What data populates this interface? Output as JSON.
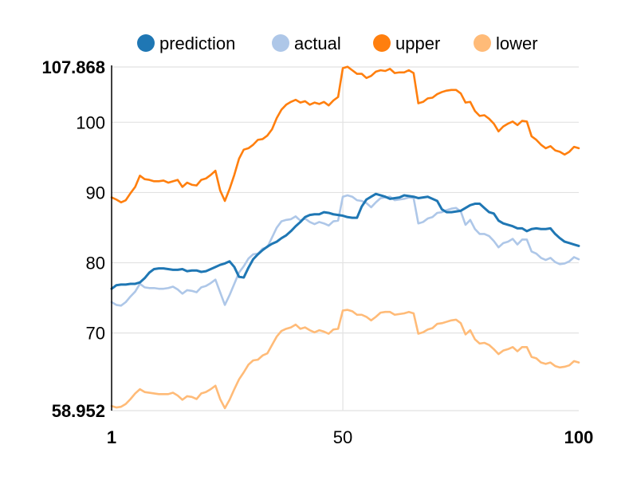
{
  "chart_data": {
    "type": "line",
    "x_range": [
      1,
      100
    ],
    "y_range": [
      58.952,
      107.868
    ],
    "x_ticks": [
      {
        "value": 1,
        "label": "1",
        "bold": true
      },
      {
        "value": 50,
        "label": "50",
        "bold": false
      },
      {
        "value": 100,
        "label": "100",
        "bold": true
      }
    ],
    "y_ticks": [
      {
        "value": 107.868,
        "label": "107.868",
        "bold": true
      },
      {
        "value": 100,
        "label": "100",
        "bold": false
      },
      {
        "value": 90,
        "label": "90",
        "bold": false
      },
      {
        "value": 80,
        "label": "80",
        "bold": false
      },
      {
        "value": 70,
        "label": "70",
        "bold": false
      },
      {
        "value": 58.952,
        "label": "58.952",
        "bold": true
      }
    ],
    "grid": true,
    "legend_position": "top",
    "series": [
      {
        "name": "prediction",
        "color": "#1f77b4",
        "values": [
          76.3,
          76.8,
          76.9,
          76.9,
          77.0,
          77.0,
          77.2,
          77.8,
          78.6,
          79.1,
          79.2,
          79.2,
          79.1,
          79.0,
          79.0,
          79.1,
          78.8,
          78.9,
          78.9,
          78.7,
          78.8,
          79.1,
          79.4,
          79.7,
          79.9,
          80.2,
          79.4,
          78.0,
          77.9,
          79.3,
          80.5,
          81.2,
          81.8,
          82.3,
          82.7,
          83.0,
          83.5,
          83.9,
          84.5,
          85.2,
          85.8,
          86.5,
          86.8,
          86.9,
          86.9,
          87.2,
          87.1,
          86.9,
          86.8,
          86.7,
          86.5,
          86.4,
          86.4,
          88.0,
          89.0,
          89.4,
          89.8,
          89.6,
          89.4,
          89.1,
          89.2,
          89.3,
          89.6,
          89.5,
          89.4,
          89.2,
          89.3,
          89.4,
          89.1,
          88.8,
          87.6,
          87.2,
          87.2,
          87.3,
          87.4,
          87.8,
          88.2,
          88.4,
          88.4,
          87.8,
          87.2,
          87.0,
          86.0,
          85.6,
          85.4,
          85.2,
          84.9,
          84.9,
          84.5,
          84.8,
          84.9,
          84.8,
          84.8,
          84.9,
          84.1,
          83.5,
          83.0,
          82.8,
          82.6,
          82.4
        ]
      },
      {
        "name": "actual",
        "color": "#aec7e8",
        "values": [
          74.4,
          74.0,
          73.9,
          74.4,
          75.2,
          75.9,
          77.0,
          76.5,
          76.4,
          76.4,
          76.3,
          76.3,
          76.4,
          76.6,
          76.2,
          75.6,
          76.1,
          76.0,
          75.8,
          76.5,
          76.7,
          77.1,
          77.6,
          75.8,
          74.0,
          75.4,
          77.0,
          78.6,
          79.5,
          80.6,
          81.2,
          81.3,
          82.0,
          82.2,
          83.6,
          85.0,
          85.9,
          86.1,
          86.2,
          86.6,
          86.0,
          86.3,
          85.8,
          85.5,
          85.8,
          85.6,
          85.3,
          85.9,
          86.0,
          89.4,
          89.6,
          89.4,
          88.9,
          88.8,
          88.5,
          87.9,
          88.6,
          89.2,
          89.3,
          89.4,
          88.9,
          89.0,
          89.1,
          89.3,
          89.2,
          85.6,
          85.8,
          86.3,
          86.5,
          87.1,
          87.2,
          87.5,
          87.7,
          87.8,
          87.3,
          85.4,
          86.1,
          84.8,
          84.1,
          84.1,
          83.8,
          83.1,
          82.2,
          82.8,
          83.0,
          83.4,
          82.6,
          83.3,
          83.3,
          81.6,
          81.3,
          80.7,
          80.4,
          80.7,
          80.1,
          79.8,
          79.9,
          80.2,
          80.8,
          80.5
        ]
      },
      {
        "name": "upper",
        "color": "#ff7f0e",
        "values": [
          89.3,
          89.0,
          88.6,
          88.9,
          89.9,
          90.8,
          92.4,
          91.9,
          91.8,
          91.6,
          91.6,
          91.7,
          91.4,
          91.6,
          91.8,
          90.8,
          91.4,
          91.1,
          91.0,
          91.8,
          92.0,
          92.5,
          93.1,
          90.3,
          88.8,
          90.5,
          92.5,
          94.8,
          96.1,
          96.3,
          96.8,
          97.5,
          97.6,
          98.1,
          99.0,
          100.6,
          101.8,
          102.5,
          102.9,
          103.2,
          102.8,
          103.0,
          102.5,
          102.8,
          102.6,
          102.9,
          102.4,
          103.1,
          103.6,
          107.7,
          107.9,
          107.4,
          106.9,
          106.9,
          106.3,
          106.6,
          107.2,
          107.4,
          107.3,
          107.6,
          107.0,
          107.1,
          107.1,
          107.4,
          107.0,
          102.7,
          102.9,
          103.4,
          103.5,
          104.0,
          104.3,
          104.5,
          104.6,
          104.6,
          104.1,
          102.8,
          102.9,
          101.6,
          100.9,
          101.0,
          100.5,
          99.8,
          98.7,
          99.4,
          99.8,
          100.1,
          99.6,
          100.2,
          100.1,
          98.0,
          97.5,
          96.8,
          96.3,
          96.6,
          96.0,
          95.8,
          95.4,
          95.8,
          96.5,
          96.3
        ]
      },
      {
        "name": "lower",
        "color": "#ffbb78",
        "values": [
          59.6,
          59.4,
          59.5,
          59.9,
          60.6,
          61.4,
          62.0,
          61.6,
          61.5,
          61.4,
          61.3,
          61.3,
          61.3,
          61.5,
          61.1,
          60.5,
          61.0,
          60.9,
          60.6,
          61.4,
          61.6,
          62.0,
          62.5,
          60.6,
          59.3,
          60.5,
          62.0,
          63.4,
          64.4,
          65.5,
          66.1,
          66.2,
          66.8,
          67.1,
          68.3,
          69.5,
          70.3,
          70.6,
          70.8,
          71.2,
          70.6,
          70.8,
          70.4,
          70.1,
          70.4,
          70.2,
          69.9,
          70.5,
          70.6,
          73.2,
          73.3,
          73.1,
          72.6,
          72.6,
          72.3,
          71.8,
          72.3,
          72.9,
          73.0,
          73.0,
          72.6,
          72.7,
          72.8,
          73.0,
          72.8,
          69.9,
          70.1,
          70.5,
          70.7,
          71.3,
          71.4,
          71.6,
          71.8,
          71.9,
          71.4,
          69.8,
          70.4,
          69.1,
          68.5,
          68.6,
          68.3,
          67.7,
          67.0,
          67.5,
          67.7,
          68.0,
          67.4,
          68.0,
          68.0,
          66.6,
          66.4,
          65.8,
          65.6,
          65.8,
          65.3,
          65.1,
          65.2,
          65.4,
          66.0,
          65.8
        ]
      }
    ]
  }
}
